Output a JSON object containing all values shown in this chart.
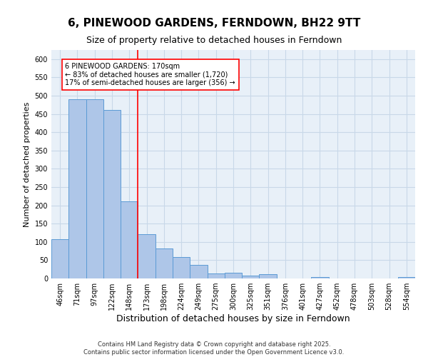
{
  "title": "6, PINEWOOD GARDENS, FERNDOWN, BH22 9TT",
  "subtitle": "Size of property relative to detached houses in Ferndown",
  "xlabel": "Distribution of detached houses by size in Ferndown",
  "ylabel": "Number of detached properties",
  "footer_line1": "Contains HM Land Registry data © Crown copyright and database right 2025.",
  "footer_line2": "Contains public sector information licensed under the Open Government Licence v3.0.",
  "categories": [
    "46sqm",
    "71sqm",
    "97sqm",
    "122sqm",
    "148sqm",
    "173sqm",
    "198sqm",
    "224sqm",
    "249sqm",
    "275sqm",
    "300sqm",
    "325sqm",
    "351sqm",
    "376sqm",
    "401sqm",
    "427sqm",
    "452sqm",
    "478sqm",
    "503sqm",
    "528sqm",
    "554sqm"
  ],
  "values": [
    107,
    490,
    490,
    460,
    210,
    122,
    83,
    58,
    38,
    14,
    15,
    8,
    11,
    0,
    0,
    4,
    0,
    0,
    0,
    0,
    4
  ],
  "bar_color": "#aec6e8",
  "bar_edge_color": "#5b9bd5",
  "grid_color": "#c8d8e8",
  "background_color": "#e8f0f8",
  "annotation_text": "6 PINEWOOD GARDENS: 170sqm\n← 83% of detached houses are smaller (1,720)\n17% of semi-detached houses are larger (356) →",
  "vline_position": 4.5,
  "ylim": [
    0,
    625
  ],
  "yticks": [
    0,
    50,
    100,
    150,
    200,
    250,
    300,
    350,
    400,
    450,
    500,
    550,
    600
  ],
  "title_fontsize": 11,
  "subtitle_fontsize": 9,
  "tick_fontsize": 7,
  "ylabel_fontsize": 8,
  "xlabel_fontsize": 9,
  "annotation_fontsize": 7,
  "footer_fontsize": 6
}
